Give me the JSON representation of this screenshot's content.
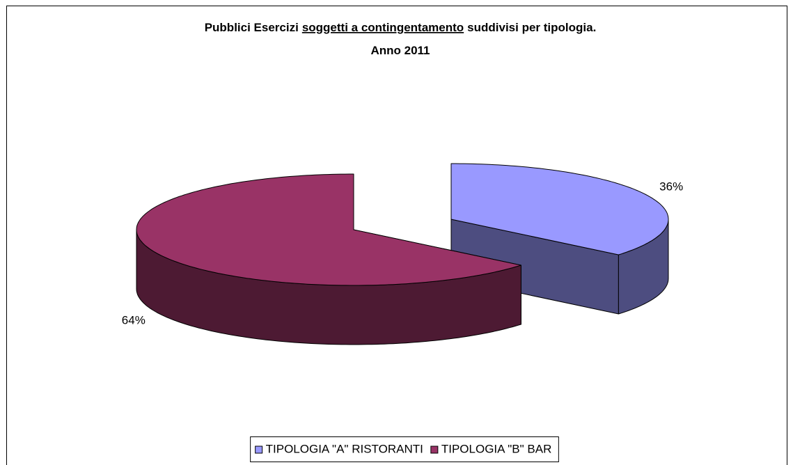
{
  "chart_data": {
    "type": "pie3d",
    "title": [
      "Pubblici Esercizi",
      "soggetti a contingentamento",
      "suddivisi per tipologia."
    ],
    "title_underline": 1,
    "subtitle": "Anno 2011",
    "categories": [
      "TIPOLOGIA \"A\" RISTORANTI",
      "TIPOLOGIA \"B\" BAR"
    ],
    "values": [
      36,
      64
    ],
    "value_labels": [
      "36%",
      "64%"
    ],
    "colors": [
      "#9999ff",
      "#993366"
    ],
    "exploded": 0,
    "legend": "bottom"
  }
}
